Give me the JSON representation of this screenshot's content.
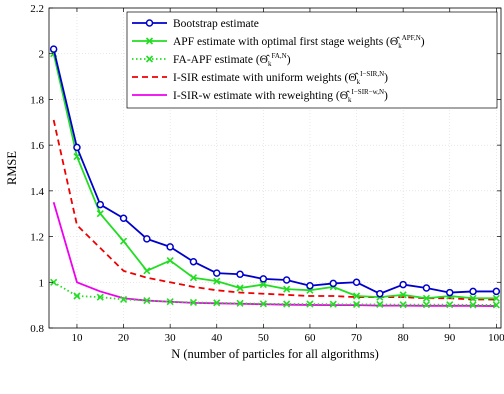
{
  "chart_data": {
    "type": "line",
    "xlabel": "N (number of particles for all algorithms)",
    "ylabel": "RMSE",
    "xlim": [
      4,
      101
    ],
    "ylim": [
      0.8,
      2.2
    ],
    "xticks": [
      10,
      20,
      30,
      40,
      50,
      60,
      70,
      80,
      90,
      100
    ],
    "yticks": [
      0.8,
      1,
      1.2,
      1.4,
      1.6,
      1.8,
      2,
      2.2
    ],
    "ytick_labels": [
      "0.8",
      "1",
      "1.2",
      "1.4",
      "1.6",
      "1.8",
      "2",
      "2.2"
    ],
    "grid": true,
    "legend_position": "top-right",
    "x": [
      5,
      10,
      15,
      20,
      25,
      30,
      35,
      40,
      45,
      50,
      55,
      60,
      65,
      70,
      75,
      80,
      85,
      90,
      95,
      100
    ],
    "series": [
      {
        "name": "Bootstrap estimate",
        "color": "#0000cc",
        "style": "solid",
        "marker": "circle",
        "values": [
          2.02,
          1.59,
          1.34,
          1.28,
          1.19,
          1.155,
          1.09,
          1.04,
          1.035,
          1.015,
          1.01,
          0.985,
          0.995,
          1.0,
          0.95,
          0.99,
          0.975,
          0.955,
          0.96,
          0.96
        ]
      },
      {
        "name": "APF estimate with optimal first stage weights",
        "legend_math": "(Θ̂",
        "legend_sub": "k",
        "legend_sup": "APF,N",
        "color": "#22dd22",
        "style": "solid",
        "marker": "x",
        "values": [
          2.0,
          1.55,
          1.3,
          1.18,
          1.05,
          1.095,
          1.02,
          1.005,
          0.975,
          0.99,
          0.97,
          0.965,
          0.98,
          0.94,
          0.935,
          0.945,
          0.93,
          0.94,
          0.93,
          0.93
        ]
      },
      {
        "name": "FA-APF estimate",
        "legend_math": "(Θ̂",
        "legend_sub": "k",
        "legend_sup": "FA,N",
        "color": "#22dd22",
        "style": "dotted",
        "marker": "x",
        "values": [
          1.0,
          0.94,
          0.935,
          0.925,
          0.92,
          0.915,
          0.912,
          0.91,
          0.908,
          0.906,
          0.905,
          0.905,
          0.904,
          0.903,
          0.903,
          0.902,
          0.902,
          0.902,
          0.901,
          0.901
        ]
      },
      {
        "name": "I-SIR estimate with uniform weights",
        "legend_math": "(Θ̂",
        "legend_sub": "k",
        "legend_sup": "I−SIR,N",
        "color": "#ee0000",
        "style": "dashed",
        "marker": "none",
        "values": [
          1.71,
          1.25,
          1.15,
          1.05,
          1.02,
          1.0,
          0.98,
          0.965,
          0.955,
          0.95,
          0.945,
          0.94,
          0.94,
          0.935,
          0.935,
          0.935,
          0.93,
          0.93,
          0.925,
          0.925
        ]
      },
      {
        "name": "I-SIR-w estimate with reweighting",
        "legend_math": "(Θ̂",
        "legend_sub": "k",
        "legend_sup": "I−SIR−w,N",
        "color": "#ee00ee",
        "style": "solid",
        "marker": "none",
        "values": [
          1.35,
          1.0,
          0.96,
          0.93,
          0.92,
          0.915,
          0.91,
          0.908,
          0.906,
          0.904,
          0.902,
          0.901,
          0.9,
          0.9,
          0.898,
          0.898,
          0.897,
          0.897,
          0.897,
          0.896
        ]
      }
    ]
  }
}
